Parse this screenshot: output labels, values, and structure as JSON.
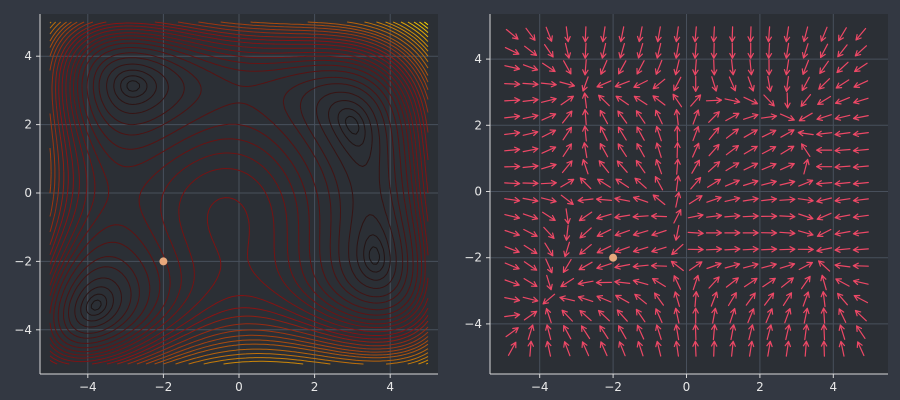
{
  "colors": {
    "figure_background": "#333842",
    "plot_background": "#2b2f35",
    "axis": "#d9d9d9",
    "tick_text": "#e8e8e8",
    "grid": "#48505c",
    "contour_low": "#141414",
    "contour_mid": "#8b1313",
    "contour_high": "#ffdd00",
    "arrows": "#ee4866",
    "marker": "#e8a87c"
  },
  "chart_data": [
    {
      "type": "contour",
      "function": "Himmelblau's function f(x,y) = (x^2 + y - 11)^2 + (x + y^2 - 7)^2",
      "xlim": [
        -5,
        5
      ],
      "ylim": [
        -5,
        5
      ],
      "xticks": [
        -4,
        -2,
        0,
        2,
        4
      ],
      "yticks": [
        -4,
        -2,
        0,
        2,
        4
      ],
      "grid": true,
      "colormap": [
        "#141414",
        "#8b1313",
        "#ffdd00"
      ],
      "levels": [
        1,
        4,
        10,
        20,
        35,
        50,
        70,
        90,
        110,
        130,
        150,
        175,
        200,
        225,
        250,
        280,
        310,
        340,
        370,
        400,
        440,
        480,
        520,
        560,
        600,
        650,
        700,
        750,
        800,
        850,
        900
      ],
      "marker": {
        "x": -2,
        "y": -2
      }
    },
    {
      "type": "quiver",
      "description": "normalized negative-gradient arrows",
      "xlim": [
        -5,
        5
      ],
      "ylim": [
        -5,
        5
      ],
      "xticks": [
        -4,
        -2,
        0,
        2,
        4
      ],
      "yticks": [
        -4,
        -2,
        0,
        2,
        4
      ],
      "grid": true,
      "grid_x": {
        "start": -4.75,
        "step": 0.5,
        "count": 20
      },
      "grid_y": {
        "start": -4.75,
        "step": 0.5,
        "count": 20
      },
      "marker": {
        "x": -2,
        "y": -2
      }
    }
  ]
}
